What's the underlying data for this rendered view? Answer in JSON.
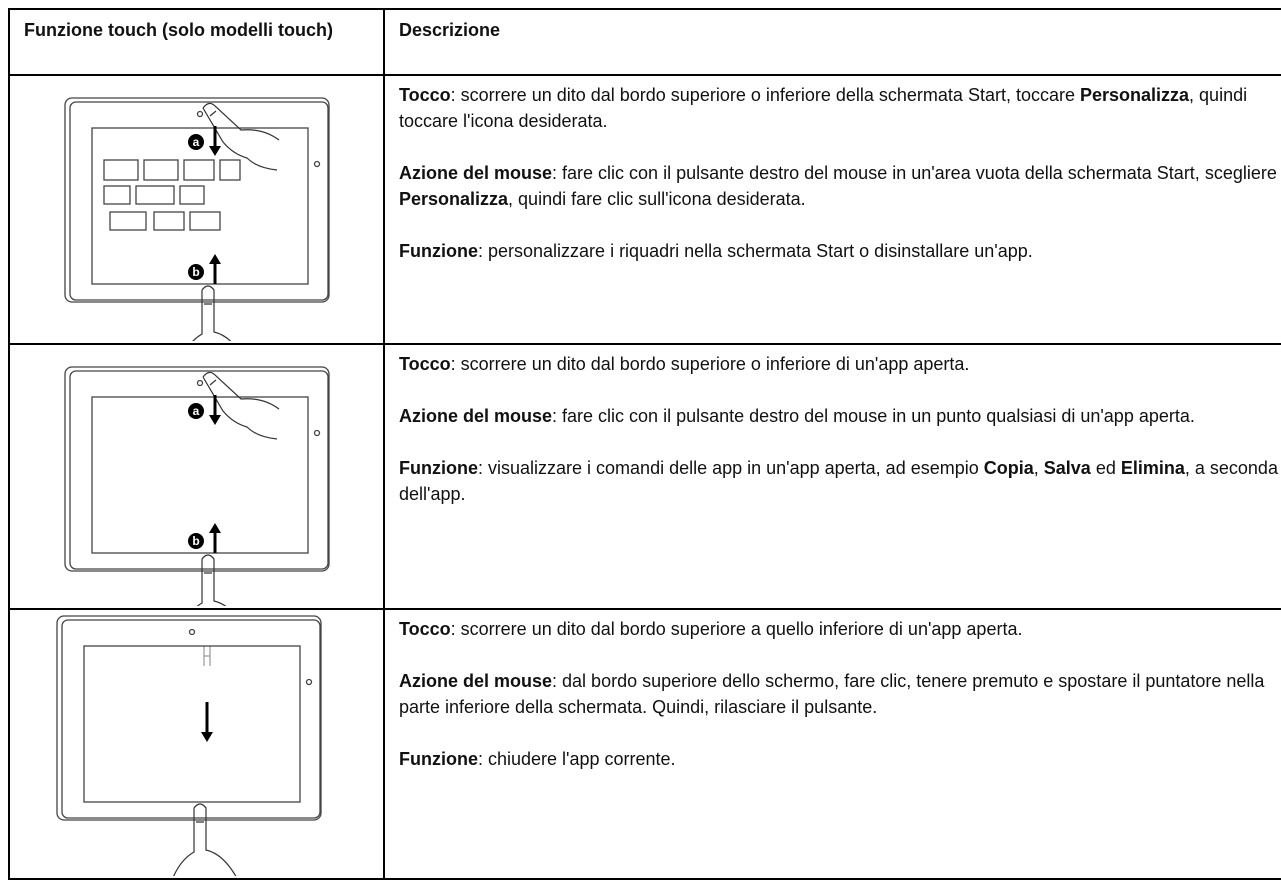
{
  "table": {
    "header": [
      "Funzione touch (solo modelli touch)",
      "Descrizione"
    ],
    "rows": [
      {
        "illustration": {
          "markers": [
            "a",
            "b"
          ]
        },
        "description": [
          [
            {
              "text": "Tocco",
              "bold": true
            },
            {
              "text": ": scorrere un dito dal bordo superiore o inferiore della schermata Start, toccare "
            },
            {
              "text": "Personalizza",
              "bold": true
            },
            {
              "text": ", quindi toccare l'icona desiderata."
            }
          ],
          [
            {
              "text": "Azione del mouse",
              "bold": true
            },
            {
              "text": ": fare clic con il pulsante destro del mouse in un'area vuota della schermata Start, scegliere "
            },
            {
              "text": "Personalizza",
              "bold": true
            },
            {
              "text": ", quindi fare clic sull'icona desiderata."
            }
          ],
          [
            {
              "text": "Funzione",
              "bold": true
            },
            {
              "text": ": personalizzare i riquadri nella schermata Start o disinstallare un'app."
            }
          ]
        ]
      },
      {
        "illustration": {
          "markers": [
            "a",
            "b"
          ]
        },
        "description": [
          [
            {
              "text": "Tocco",
              "bold": true
            },
            {
              "text": ": scorrere un dito dal bordo superiore o inferiore di un'app aperta."
            }
          ],
          [
            {
              "text": "Azione del mouse",
              "bold": true
            },
            {
              "text": ": fare clic con il pulsante destro del mouse in un punto qualsiasi di un'app aperta."
            }
          ],
          [
            {
              "text": "Funzione",
              "bold": true
            },
            {
              "text": ": visualizzare i comandi delle app in un'app aperta, ad esempio "
            },
            {
              "text": "Copia",
              "bold": true
            },
            {
              "text": ", "
            },
            {
              "text": "Salva",
              "bold": true
            },
            {
              "text": " ed "
            },
            {
              "text": "Elimina",
              "bold": true
            },
            {
              "text": ", a seconda dell'app."
            }
          ]
        ]
      },
      {
        "description": [
          [
            {
              "text": "Tocco",
              "bold": true
            },
            {
              "text": ": scorrere un dito dal bordo superiore a quello inferiore di un'app aperta."
            }
          ],
          [
            {
              "text": "Azione del mouse",
              "bold": true
            },
            {
              "text": ": dal bordo superiore dello schermo, fare clic, tenere premuto e spostare il puntatore nella parte inferiore della schermata. Quindi, rilasciare il pulsante."
            }
          ],
          [
            {
              "text": "Funzione",
              "bold": true
            },
            {
              "text": ": chiudere l'app corrente."
            }
          ]
        ]
      }
    ]
  }
}
